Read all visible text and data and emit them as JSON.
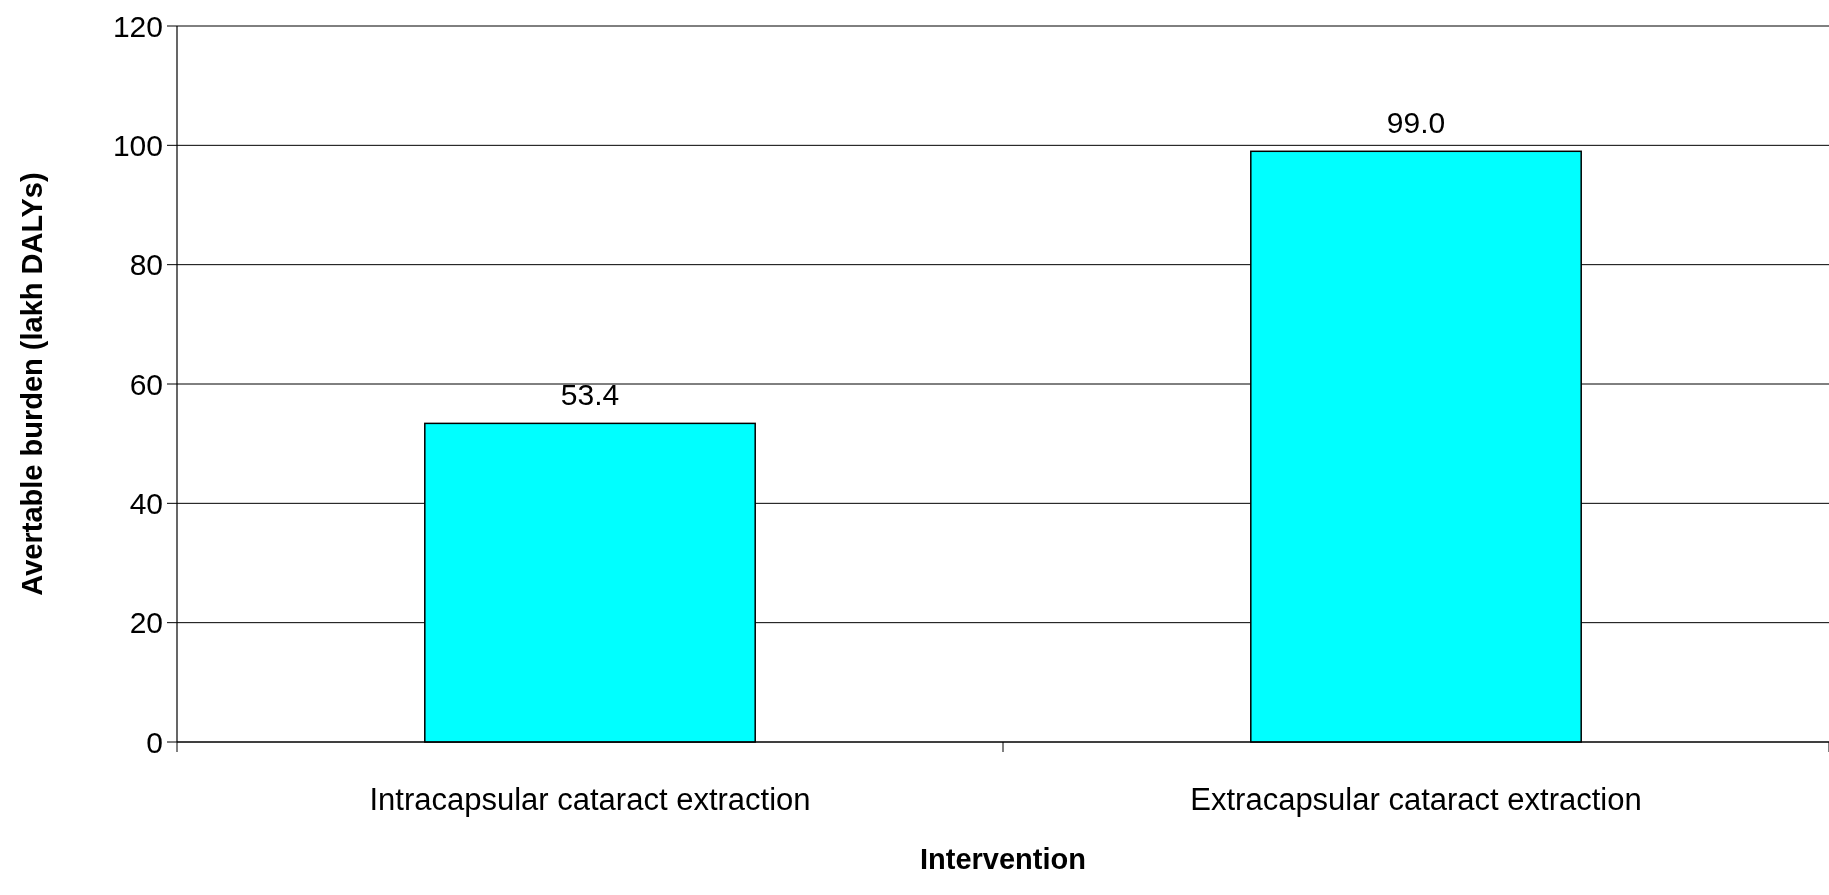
{
  "chart_data": {
    "type": "bar",
    "xlabel": "Intervention",
    "ylabel": "Avertable burden (lakh DALYs)",
    "categories": [
      "Intracapsular cataract extraction",
      "Extracapsular cataract extraction"
    ],
    "values": [
      53.4,
      99.0
    ],
    "value_labels": [
      "53.4",
      "99.0"
    ],
    "color": "#00ffff",
    "ylim": [
      0,
      120
    ],
    "yticks": [
      0,
      20,
      40,
      60,
      80,
      100,
      120
    ],
    "grid": "y"
  }
}
